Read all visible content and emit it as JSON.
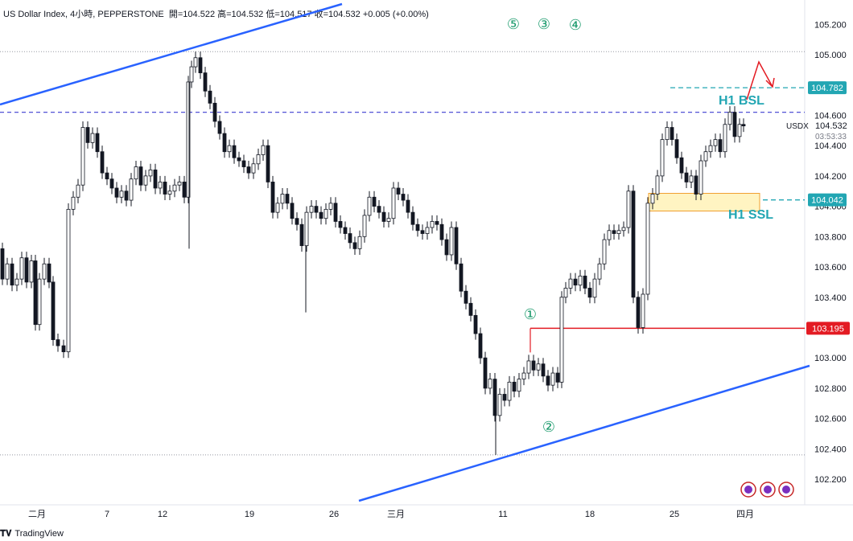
{
  "header": {
    "symbol": "US Dollar Index",
    "timeframe": "4小時",
    "source": "PEPPERSTONE",
    "ohlc": "開=104.522  高=104.532  低=104.517  收=104.532  +0.005 (+0.00%)"
  },
  "footer": {
    "brand": "TradingView"
  },
  "colors": {
    "up": "#131722",
    "down": "#131722",
    "trendline": "#2962ff",
    "level_dash": "#3c3cd0",
    "teal": "#22a6b3",
    "red": "#e31b23",
    "ob_fill": "#fff4c2",
    "ob_border": "#f0a030",
    "grid": "#e0e3eb"
  },
  "chart_data": {
    "type": "candlestick",
    "symbol": "USDX",
    "timeframe": "4h",
    "ylim": [
      102.1,
      105.3
    ],
    "y_ticks": [
      102.2,
      102.4,
      102.6,
      102.8,
      103.0,
      103.2,
      103.4,
      103.6,
      103.8,
      104.0,
      104.2,
      104.4,
      104.6,
      104.8,
      105.0,
      105.2
    ],
    "x_ticks": [
      "二月",
      "7",
      "12",
      "19",
      "26",
      "三月",
      "11",
      "18",
      "25",
      "四月"
    ],
    "price_label": {
      "symbol": "USDX",
      "value": "104.532",
      "countdown": "03:53:33"
    },
    "path_points": [
      [
        0,
        103.72
      ],
      [
        6,
        103.52
      ],
      [
        12,
        103.62
      ],
      [
        18,
        103.48
      ],
      [
        24,
        103.52
      ],
      [
        30,
        103.66
      ],
      [
        36,
        103.5
      ],
      [
        42,
        103.64
      ],
      [
        46,
        103.22
      ],
      [
        52,
        103.52
      ],
      [
        58,
        103.62
      ],
      [
        64,
        103.5
      ],
      [
        68,
        103.12
      ],
      [
        76,
        103.08
      ],
      [
        82,
        103.04
      ],
      [
        88,
        103.98
      ],
      [
        94,
        104.06
      ],
      [
        100,
        104.14
      ],
      [
        106,
        104.52
      ],
      [
        112,
        104.42
      ],
      [
        118,
        104.48
      ],
      [
        124,
        104.36
      ],
      [
        130,
        104.22
      ],
      [
        136,
        104.18
      ],
      [
        142,
        104.12
      ],
      [
        148,
        104.06
      ],
      [
        154,
        104.1
      ],
      [
        160,
        104.04
      ],
      [
        166,
        104.18
      ],
      [
        172,
        104.26
      ],
      [
        178,
        104.14
      ],
      [
        184,
        104.2
      ],
      [
        190,
        104.24
      ],
      [
        196,
        104.12
      ],
      [
        202,
        104.16
      ],
      [
        208,
        104.08
      ],
      [
        214,
        104.1
      ],
      [
        220,
        104.14
      ],
      [
        226,
        104.16
      ],
      [
        232,
        104.06
      ],
      [
        236,
        104.82
      ],
      [
        240,
        104.92
      ],
      [
        246,
        104.98
      ],
      [
        252,
        104.88
      ],
      [
        258,
        104.76
      ],
      [
        264,
        104.68
      ],
      [
        270,
        104.56
      ],
      [
        276,
        104.48
      ],
      [
        282,
        104.36
      ],
      [
        288,
        104.4
      ],
      [
        294,
        104.32
      ],
      [
        300,
        104.3
      ],
      [
        306,
        104.26
      ],
      [
        312,
        104.22
      ],
      [
        318,
        104.28
      ],
      [
        324,
        104.34
      ],
      [
        330,
        104.4
      ],
      [
        336,
        104.16
      ],
      [
        342,
        103.96
      ],
      [
        348,
        104.02
      ],
      [
        354,
        104.08
      ],
      [
        360,
        104.02
      ],
      [
        366,
        103.92
      ],
      [
        372,
        103.88
      ],
      [
        378,
        103.74
      ],
      [
        384,
        103.96
      ],
      [
        390,
        104.0
      ],
      [
        396,
        103.96
      ],
      [
        402,
        103.92
      ],
      [
        408,
        103.98
      ],
      [
        414,
        104.02
      ],
      [
        420,
        103.9
      ],
      [
        426,
        103.86
      ],
      [
        432,
        103.82
      ],
      [
        438,
        103.76
      ],
      [
        444,
        103.72
      ],
      [
        450,
        103.8
      ],
      [
        456,
        103.94
      ],
      [
        462,
        104.06
      ],
      [
        468,
        104.0
      ],
      [
        474,
        103.96
      ],
      [
        480,
        103.9
      ],
      [
        486,
        103.92
      ],
      [
        492,
        104.12
      ],
      [
        498,
        104.08
      ],
      [
        504,
        104.04
      ],
      [
        510,
        103.96
      ],
      [
        516,
        103.88
      ],
      [
        522,
        103.84
      ],
      [
        528,
        103.82
      ],
      [
        534,
        103.86
      ],
      [
        540,
        103.9
      ],
      [
        546,
        103.88
      ],
      [
        552,
        103.78
      ],
      [
        558,
        103.68
      ],
      [
        564,
        103.86
      ],
      [
        570,
        103.62
      ],
      [
        576,
        103.44
      ],
      [
        582,
        103.36
      ],
      [
        588,
        103.28
      ],
      [
        594,
        103.16
      ],
      [
        600,
        103.0
      ],
      [
        606,
        102.8
      ],
      [
        612,
        102.86
      ],
      [
        618,
        102.62
      ],
      [
        624,
        102.76
      ],
      [
        630,
        102.72
      ],
      [
        636,
        102.84
      ],
      [
        642,
        102.78
      ],
      [
        648,
        102.86
      ],
      [
        654,
        102.9
      ],
      [
        660,
        102.98
      ],
      [
        666,
        102.92
      ],
      [
        672,
        102.96
      ],
      [
        678,
        102.88
      ],
      [
        684,
        102.82
      ],
      [
        690,
        102.9
      ],
      [
        696,
        102.84
      ],
      [
        700,
        103.4
      ],
      [
        706,
        103.46
      ],
      [
        712,
        103.52
      ],
      [
        718,
        103.48
      ],
      [
        724,
        103.54
      ],
      [
        730,
        103.46
      ],
      [
        736,
        103.4
      ],
      [
        742,
        103.52
      ],
      [
        748,
        103.62
      ],
      [
        754,
        103.78
      ],
      [
        760,
        103.84
      ],
      [
        766,
        103.82
      ],
      [
        772,
        103.84
      ],
      [
        778,
        103.86
      ],
      [
        784,
        104.1
      ],
      [
        790,
        103.4
      ],
      [
        796,
        103.2
      ],
      [
        802,
        103.42
      ],
      [
        808,
        104.02
      ],
      [
        814,
        104.08
      ],
      [
        820,
        104.2
      ],
      [
        826,
        104.44
      ],
      [
        832,
        104.52
      ],
      [
        838,
        104.44
      ],
      [
        844,
        104.32
      ],
      [
        850,
        104.22
      ],
      [
        856,
        104.16
      ],
      [
        862,
        104.2
      ],
      [
        868,
        104.08
      ],
      [
        874,
        104.3
      ],
      [
        880,
        104.36
      ],
      [
        886,
        104.4
      ],
      [
        892,
        104.44
      ],
      [
        898,
        104.36
      ],
      [
        904,
        104.54
      ],
      [
        910,
        104.62
      ],
      [
        916,
        104.46
      ],
      [
        922,
        104.54
      ],
      [
        926,
        104.53
      ]
    ],
    "levels": [
      {
        "name": "104.782",
        "price": 104.782,
        "style": "teal-dashed",
        "label": "H1 BSL"
      },
      {
        "name": "104.042",
        "price": 104.042,
        "style": "teal-dashed",
        "label": "H1 SSL"
      },
      {
        "name": "103.195",
        "price": 103.195,
        "style": "red-solid"
      },
      {
        "name": "purple-dashed",
        "price": 104.62,
        "style": "purple-dashed"
      },
      {
        "name": "dotted-top",
        "price": 105.02,
        "style": "dotted"
      },
      {
        "name": "dotted-bottom",
        "price": 102.36,
        "style": "dotted"
      }
    ],
    "wave_labels": [
      "⑤",
      "③",
      "④",
      "①",
      "②"
    ],
    "annotations": [
      "H1 BSL",
      "H1 SSL"
    ]
  }
}
